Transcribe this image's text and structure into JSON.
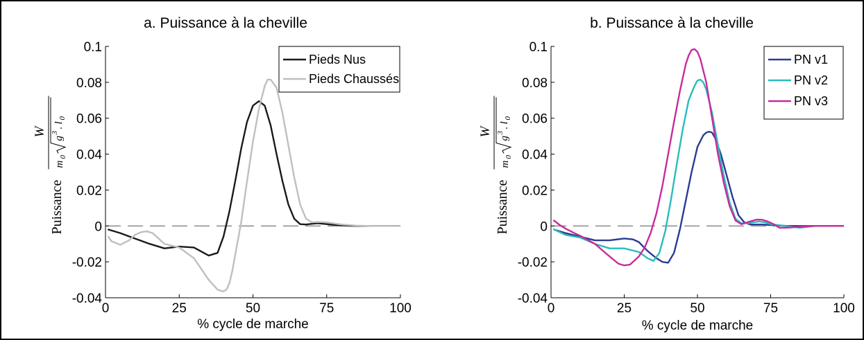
{
  "chart_data": [
    {
      "type": "line",
      "title": "a. Puissance à la cheville",
      "xlabel": "% cycle de marche",
      "ylabel_text": "Puissance",
      "ylabel_formula": {
        "numerator": "W",
        "mass": "m",
        "mass_sub": "0",
        "g": "g",
        "g_exp": "3",
        "dot": ".",
        "l": "l",
        "l_sub": "0"
      },
      "xlim": [
        0,
        100
      ],
      "ylim": [
        -0.04,
        0.1
      ],
      "xticks": [
        0,
        25,
        50,
        75,
        100
      ],
      "xtick_labels": [
        "0",
        "25",
        "50",
        "75",
        "100"
      ],
      "yticks": [
        -0.04,
        -0.02,
        0,
        0.02,
        0.04,
        0.06,
        0.08,
        0.1
      ],
      "ytick_labels": [
        "-0.04",
        "-0.02",
        "0",
        "0.02",
        "0.04",
        "0.06",
        "0.08",
        "0.1"
      ],
      "legend_position": "top-right",
      "zero_line": true,
      "grid": false,
      "series": [
        {
          "name": "Pieds Nus",
          "color": "#1a1a1a",
          "x": [
            1,
            5,
            10,
            15,
            20,
            25,
            30,
            35,
            38,
            40,
            42,
            44,
            46,
            48,
            50,
            52,
            54,
            56,
            58,
            60,
            62,
            64,
            66,
            68,
            70,
            72,
            75,
            80,
            85,
            90,
            95,
            100
          ],
          "y": [
            -0.002,
            -0.004,
            -0.007,
            -0.01,
            -0.0125,
            -0.0115,
            -0.012,
            -0.0165,
            -0.015,
            -0.006,
            0.008,
            0.025,
            0.043,
            0.058,
            0.067,
            0.0695,
            0.067,
            0.056,
            0.04,
            0.025,
            0.012,
            0.004,
            0.001,
            0.0008,
            0.0012,
            0.0015,
            0.001,
            0.0003,
            0,
            0,
            0,
            0
          ]
        },
        {
          "name": "Pieds Chaussés",
          "color": "#bfbfbf",
          "x": [
            1,
            2,
            5,
            8,
            10,
            12,
            14,
            16,
            18,
            20,
            25,
            30,
            35,
            38,
            40,
            41,
            42,
            43,
            44,
            46,
            48,
            50,
            52,
            54,
            55,
            56,
            58,
            60,
            62,
            64,
            66,
            68,
            70,
            72,
            75,
            80,
            85,
            90,
            95,
            100
          ],
          "y": [
            -0.006,
            -0.0085,
            -0.0105,
            -0.008,
            -0.005,
            -0.0035,
            -0.003,
            -0.004,
            -0.007,
            -0.01,
            -0.012,
            -0.018,
            -0.03,
            -0.0355,
            -0.0365,
            -0.0355,
            -0.032,
            -0.025,
            -0.016,
            0.002,
            0.025,
            0.047,
            0.065,
            0.078,
            0.0815,
            0.0815,
            0.077,
            0.063,
            0.045,
            0.027,
            0.012,
            0.004,
            0.002,
            0.0022,
            0.002,
            0.0008,
            0.0002,
            0,
            0,
            0
          ]
        }
      ]
    },
    {
      "type": "line",
      "title": "b. Puissance à la cheville",
      "xlabel": "% cycle de marche",
      "ylabel_text": "Puissance",
      "ylabel_formula": {
        "numerator": "W",
        "mass": "m",
        "mass_sub": "0",
        "g": "g",
        "g_exp": "3",
        "dot": ".",
        "l": "l",
        "l_sub": "0"
      },
      "xlim": [
        0,
        100
      ],
      "ylim": [
        -0.04,
        0.1
      ],
      "xticks": [
        0,
        25,
        50,
        75,
        100
      ],
      "xtick_labels": [
        "0",
        "25",
        "50",
        "75",
        "100"
      ],
      "yticks": [
        -0.04,
        -0.02,
        0,
        0.02,
        0.04,
        0.06,
        0.08,
        0.1
      ],
      "ytick_labels": [
        "-0.04",
        "-0.02",
        "0",
        "0.02",
        "0.04",
        "0.06",
        "0.08",
        "0.1"
      ],
      "legend_position": "top-right",
      "zero_line": true,
      "grid": false,
      "series": [
        {
          "name": "PN v1",
          "color": "#2a3b93",
          "x": [
            1,
            5,
            10,
            15,
            20,
            25,
            28,
            30,
            33,
            36,
            38,
            40,
            42,
            44,
            46,
            48,
            50,
            52,
            53,
            54,
            55,
            56,
            58,
            60,
            62,
            64,
            66,
            68,
            70,
            72,
            75,
            80,
            85,
            90,
            95,
            100
          ],
          "y": [
            -0.002,
            -0.004,
            -0.006,
            -0.008,
            -0.008,
            -0.007,
            -0.0075,
            -0.009,
            -0.014,
            -0.018,
            -0.02,
            -0.0205,
            -0.015,
            -0.002,
            0.014,
            0.03,
            0.044,
            0.0505,
            0.052,
            0.0525,
            0.052,
            0.049,
            0.04,
            0.028,
            0.016,
            0.006,
            0.002,
            0.0008,
            0.0008,
            0.0008,
            0.0005,
            0.0001,
            0,
            0,
            0,
            0
          ]
        },
        {
          "name": "PN v2",
          "color": "#27bcbc",
          "x": [
            1,
            5,
            10,
            15,
            20,
            25,
            30,
            33,
            35,
            37,
            39,
            41,
            43,
            45,
            47,
            49,
            50,
            51,
            52,
            53,
            55,
            57,
            59,
            61,
            63,
            65,
            67,
            69,
            71,
            73,
            75,
            80,
            85,
            90,
            95,
            100
          ],
          "y": [
            -0.002,
            -0.005,
            -0.0065,
            -0.01,
            -0.0125,
            -0.0125,
            -0.0145,
            -0.018,
            -0.0195,
            -0.015,
            -0.003,
            0.015,
            0.035,
            0.054,
            0.07,
            0.078,
            0.081,
            0.0815,
            0.08,
            0.076,
            0.063,
            0.045,
            0.028,
            0.013,
            0.004,
            0.0015,
            0.0015,
            0.002,
            0.0025,
            0.002,
            0.001,
            0,
            -0.001,
            0,
            0,
            0
          ]
        },
        {
          "name": "PN v3",
          "color": "#c72b9c",
          "x": [
            1,
            3,
            5,
            8,
            10,
            15,
            20,
            23,
            25,
            27,
            30,
            32,
            34,
            36,
            38,
            40,
            42,
            44,
            46,
            47,
            48,
            49,
            50,
            51,
            53,
            55,
            57,
            59,
            61,
            63,
            65,
            68,
            70,
            72,
            74,
            76,
            78,
            80,
            85,
            90,
            95,
            100
          ],
          "y": [
            0.003,
            0.0005,
            -0.0015,
            -0.004,
            -0.0055,
            -0.01,
            -0.017,
            -0.021,
            -0.022,
            -0.0215,
            -0.017,
            -0.012,
            -0.004,
            0.007,
            0.022,
            0.04,
            0.058,
            0.075,
            0.09,
            0.095,
            0.098,
            0.0985,
            0.097,
            0.093,
            0.08,
            0.06,
            0.04,
            0.024,
            0.011,
            0.003,
            0.001,
            0.0025,
            0.0035,
            0.0035,
            0.0025,
            0.001,
            -0.001,
            -0.001,
            -0.0005,
            0,
            0,
            0
          ]
        }
      ]
    }
  ]
}
